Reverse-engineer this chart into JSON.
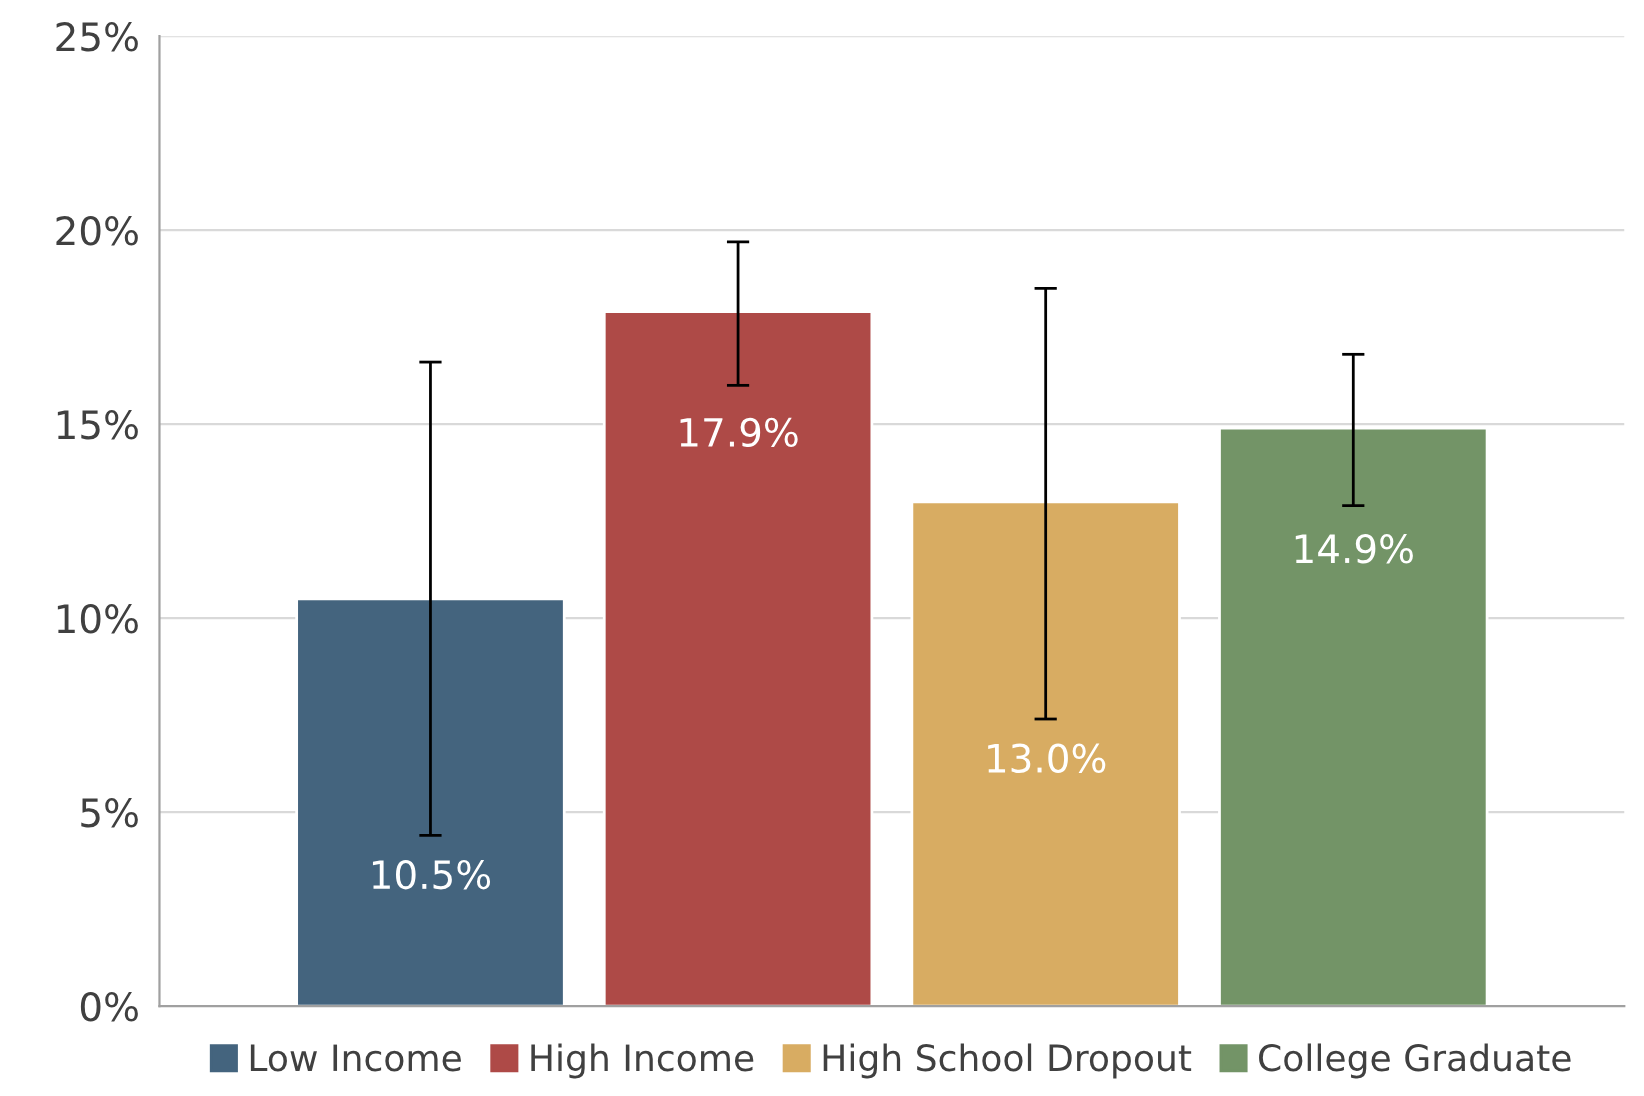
{
  "chart_data": {
    "type": "bar",
    "categories": [
      null
    ],
    "series": [
      {
        "name": "Low Income",
        "color": "#44647e",
        "values": [
          10.5
        ],
        "errors": [
          [
            4.4,
            16.6
          ]
        ],
        "value_labels": [
          "10.5%"
        ]
      },
      {
        "name": "High Income",
        "color": "#ae4a47",
        "values": [
          17.9
        ],
        "errors": [
          [
            16.0,
            19.7
          ]
        ],
        "value_labels": [
          "17.9%"
        ]
      },
      {
        "name": "High School Dropout",
        "color": "#d8ac62",
        "values": [
          13.0
        ],
        "errors": [
          [
            7.4,
            18.5
          ]
        ],
        "value_labels": [
          "13.0%"
        ]
      },
      {
        "name": "College Graduate",
        "color": "#739467",
        "values": [
          14.9
        ],
        "errors": [
          [
            12.9,
            16.8
          ]
        ],
        "value_labels": [
          "14.9%"
        ]
      }
    ],
    "ylim": [
      0,
      25
    ],
    "yticks": [
      {
        "value": 0,
        "label": "0%"
      },
      {
        "value": 5,
        "label": "5%"
      },
      {
        "value": 10,
        "label": "10%"
      },
      {
        "value": 15,
        "label": "15%"
      },
      {
        "value": 20,
        "label": "20%"
      },
      {
        "value": 25,
        "label": "25%"
      }
    ],
    "grid": "y",
    "legend": "bottom"
  }
}
